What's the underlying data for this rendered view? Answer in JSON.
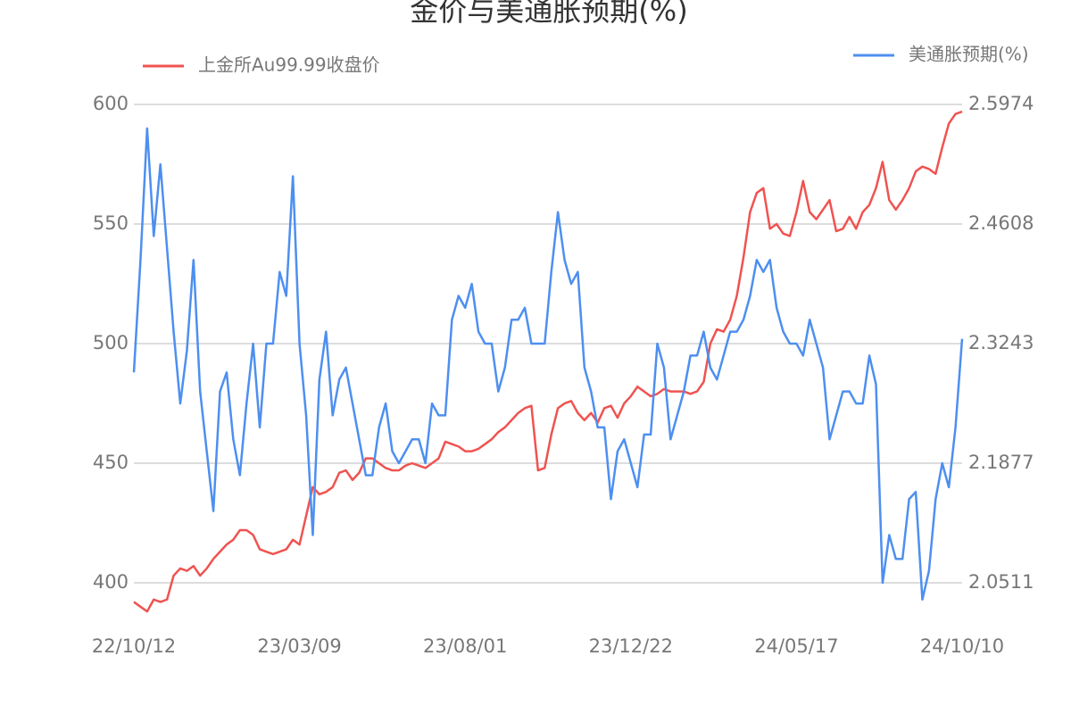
{
  "chart_data": {
    "type": "line",
    "title": "金价与美通胀预期(%)",
    "categories": [
      "22/10/12",
      null,
      null,
      null,
      null,
      null,
      null,
      null,
      null,
      null,
      null,
      null,
      null,
      null,
      null,
      null,
      null,
      null,
      null,
      null,
      null,
      null,
      null,
      null,
      null,
      "23/03/09",
      null,
      null,
      null,
      null,
      null,
      null,
      null,
      null,
      null,
      null,
      null,
      null,
      null,
      null,
      null,
      null,
      null,
      null,
      null,
      null,
      null,
      null,
      null,
      null,
      "23/08/01",
      null,
      null,
      null,
      null,
      null,
      null,
      null,
      null,
      null,
      null,
      null,
      null,
      null,
      null,
      null,
      null,
      null,
      null,
      null,
      null,
      null,
      null,
      null,
      null,
      "23/12/22",
      null,
      null,
      null,
      null,
      null,
      null,
      null,
      null,
      null,
      null,
      null,
      null,
      null,
      null,
      null,
      null,
      null,
      null,
      null,
      null,
      null,
      null,
      null,
      null,
      "24/05/17",
      null,
      null,
      null,
      null,
      null,
      null,
      null,
      null,
      null,
      null,
      null,
      null,
      null,
      null,
      null,
      null,
      null,
      null,
      null,
      null,
      null,
      null,
      null,
      null,
      "24/10/10"
    ],
    "series": [
      {
        "name": "上金所Au99.99收盘价",
        "color": "#ef5350",
        "axis": "y",
        "values": [
          392,
          390,
          388,
          393,
          392,
          393,
          403,
          406,
          405,
          407,
          403,
          406,
          410,
          413,
          416,
          418,
          422,
          422,
          420,
          414,
          413,
          412,
          413,
          414,
          418,
          416,
          428,
          440,
          437,
          438,
          440,
          446,
          447,
          443,
          446,
          452,
          452,
          450,
          448,
          447,
          447,
          449,
          450,
          449,
          448,
          450,
          452,
          459,
          458,
          457,
          455,
          455,
          456,
          458,
          460,
          463,
          465,
          468,
          471,
          473,
          474,
          447,
          448,
          462,
          473,
          475,
          476,
          471,
          468,
          471,
          467,
          473,
          474,
          469,
          475,
          478,
          482,
          480,
          478,
          479,
          481,
          480,
          480,
          480,
          479,
          480,
          484,
          500,
          506,
          505,
          510,
          520,
          536,
          555,
          563,
          565,
          548,
          550,
          546,
          545,
          555,
          568,
          555,
          552,
          556,
          560,
          547,
          548,
          553,
          548,
          555,
          558,
          565,
          576,
          560,
          556,
          560,
          565,
          572,
          574,
          573,
          571,
          582,
          592,
          596,
          597
        ]
      },
      {
        "name": "美通胀预期(%)",
        "color": "#4d8ff0",
        "axis": "y2",
        "values": [
          2.2914,
          2.4198,
          2.57,
          2.4471,
          2.529,
          2.4335,
          2.3379,
          2.2559,
          2.316,
          2.4198,
          2.2696,
          2.2013,
          2.133,
          2.2696,
          2.2914,
          2.215,
          2.174,
          2.2559,
          2.3242,
          2.2286,
          2.3242,
          2.3242,
          2.4061,
          2.3788,
          2.5154,
          2.3242,
          2.2423,
          2.1057,
          2.2832,
          2.3379,
          2.2423,
          2.2832,
          2.2969,
          2.2559,
          2.215,
          2.174,
          2.174,
          2.2286,
          2.2559,
          2.2013,
          2.1877,
          2.2013,
          2.215,
          2.215,
          2.1877,
          2.2559,
          2.2423,
          2.2423,
          2.3515,
          2.3788,
          2.3652,
          2.3925,
          2.3379,
          2.3242,
          2.3242,
          2.2696,
          2.2969,
          2.3515,
          2.3515,
          2.3652,
          2.3242,
          2.3242,
          2.3242,
          2.4061,
          2.4744,
          2.4198,
          2.3925,
          2.4061,
          2.2969,
          2.2696,
          2.2286,
          2.2286,
          2.1467,
          2.2013,
          2.215,
          2.1877,
          2.1603,
          2.2204,
          2.2204,
          2.3242,
          2.2969,
          2.215,
          2.2423,
          2.2696,
          2.3106,
          2.3106,
          2.3379,
          2.2969,
          2.2832,
          2.3106,
          2.3379,
          2.3379,
          2.3515,
          2.3788,
          2.4198,
          2.4061,
          2.4198,
          2.3652,
          2.3379,
          2.3242,
          2.3242,
          2.3106,
          2.3515,
          2.3242,
          2.2969,
          2.215,
          2.2423,
          2.2696,
          2.2696,
          2.2559,
          2.2559,
          2.3106,
          2.2778,
          2.0511,
          2.1057,
          2.0784,
          2.0784,
          2.1467,
          2.1549,
          2.032,
          2.0648,
          2.1467,
          2.1877,
          2.1603,
          2.2286,
          2.3297
        ]
      }
    ],
    "ylim": [
      380,
      600
    ],
    "yticks": [
      400,
      450,
      500,
      550,
      600
    ],
    "y2lim": [
      1.9965,
      2.5974
    ],
    "y2ticks": [
      2.0511,
      2.1877,
      2.3243,
      2.4608,
      2.5974
    ],
    "grid": true
  }
}
